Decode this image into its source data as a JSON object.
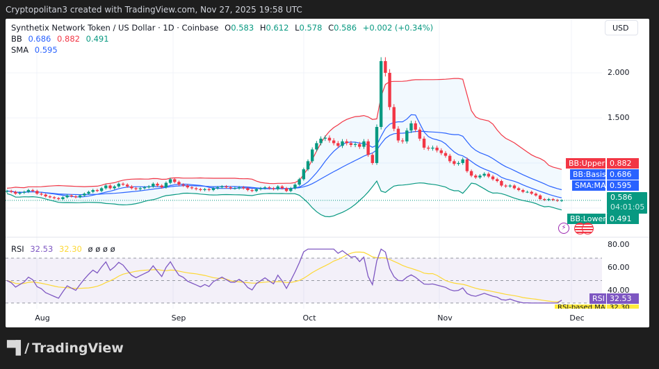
{
  "header": {
    "caption": "Cryptopolitan3 created with TradingView.com, Nov 27, 2025 19:58 UTC"
  },
  "legend": {
    "symbol": "Synthetix Network Token / US Dollar · 1D · Coinbase",
    "o_label": "O",
    "o_value": "0.583",
    "h_label": "H",
    "h_value": "0.612",
    "l_label": "L",
    "l_value": "0.578",
    "c_label": "C",
    "c_value": "0.586",
    "change": "+0.002 (+0.34%)",
    "bb_label": "BB",
    "bb_basis": "0.686",
    "bb_upper": "0.882",
    "bb_lower": "0.491",
    "sma_label": "SMA",
    "sma_value": "0.595",
    "rsi_label": "RSI",
    "rsi_value": "32.53",
    "rsi_ma_value": "32.30",
    "rsi_extra": "ø ø ø ø"
  },
  "price_scale": {
    "currency": "USD",
    "ticks": [
      "2.000",
      "1.500"
    ]
  },
  "tags": {
    "bb_upper_name": "BB:Upper",
    "bb_upper_value": "0.882",
    "bb_basis_name": "BB:Basis",
    "bb_basis_value": "0.686",
    "sma_name": "SMA:MA",
    "sma_value": "0.595",
    "last_price": "0.586",
    "countdown": "04:01:05",
    "bb_lower_name": "BB:Lower",
    "bb_lower_value": "0.491",
    "rsi_name": "RSI",
    "rsi_value": "32.53",
    "rsi_ma_name": "RSI-based MA",
    "rsi_ma_value": "32.30"
  },
  "rsi_scale": {
    "ticks": [
      "80.00",
      "60.00",
      "40.00"
    ]
  },
  "time_axis": {
    "labels": [
      "Aug",
      "Sep",
      "Oct",
      "Nov",
      "Dec"
    ]
  },
  "footer": {
    "brand": "TradingView"
  },
  "colors": {
    "up": "#089981",
    "down": "#f23645",
    "bb_upper": "#f23645",
    "bb_basis": "#2962ff",
    "bb_lower": "#089981",
    "sma": "#2962ff",
    "rsi": "#7e57c2",
    "rsi_ma": "#fdd835"
  },
  "chart_data": [
    {
      "type": "candlestick",
      "title": "Synthetix Network Token / US Dollar · 1D · Coinbase",
      "ylabel": "USD",
      "ylim": [
        0.35,
        2.35
      ],
      "x_ticks": [
        "Aug",
        "Sep",
        "Oct",
        "Nov",
        "Dec"
      ],
      "last": {
        "open": 0.583,
        "high": 0.612,
        "low": 0.578,
        "close": 0.586,
        "change": 0.002,
        "change_pct": 0.34
      },
      "overlays": {
        "bb_basis": 0.686,
        "bb_upper": 0.882,
        "bb_lower": 0.491,
        "sma": 0.595
      },
      "close_approx": [
        0.69,
        0.68,
        0.66,
        0.67,
        0.68,
        0.7,
        0.69,
        0.66,
        0.65,
        0.63,
        0.62,
        0.61,
        0.6,
        0.62,
        0.64,
        0.63,
        0.62,
        0.64,
        0.66,
        0.68,
        0.7,
        0.69,
        0.72,
        0.75,
        0.72,
        0.74,
        0.77,
        0.76,
        0.74,
        0.72,
        0.71,
        0.72,
        0.73,
        0.74,
        0.77,
        0.75,
        0.73,
        0.78,
        0.82,
        0.79,
        0.76,
        0.75,
        0.73,
        0.72,
        0.71,
        0.7,
        0.71,
        0.7,
        0.72,
        0.73,
        0.74,
        0.73,
        0.72,
        0.72,
        0.73,
        0.72,
        0.7,
        0.69,
        0.71,
        0.72,
        0.73,
        0.72,
        0.71,
        0.74,
        0.72,
        0.69,
        0.72,
        0.76,
        0.82,
        0.93,
        1.02,
        1.15,
        1.22,
        1.27,
        1.28,
        1.25,
        1.22,
        1.19,
        1.24,
        1.22,
        1.2,
        1.21,
        1.18,
        1.24,
        1.09,
        1.0,
        1.4,
        2.13,
        2.0,
        1.62,
        1.38,
        1.25,
        1.24,
        1.36,
        1.44,
        1.37,
        1.27,
        1.17,
        1.16,
        1.17,
        1.14,
        1.11,
        1.08,
        1.02,
        0.99,
        1.0,
        1.04,
        0.91,
        0.86,
        0.84,
        0.86,
        0.88,
        0.85,
        0.82,
        0.8,
        0.75,
        0.74,
        0.75,
        0.72,
        0.7,
        0.68,
        0.68,
        0.66,
        0.64,
        0.6,
        0.59,
        0.6,
        0.59,
        0.58,
        0.586
      ]
    },
    {
      "type": "line",
      "title": "RSI",
      "ylim": [
        25,
        85
      ],
      "bands": [
        30,
        50,
        70
      ],
      "series": [
        {
          "name": "RSI",
          "last": 32.53
        },
        {
          "name": "RSI-based MA",
          "last": 32.3
        }
      ]
    }
  ]
}
